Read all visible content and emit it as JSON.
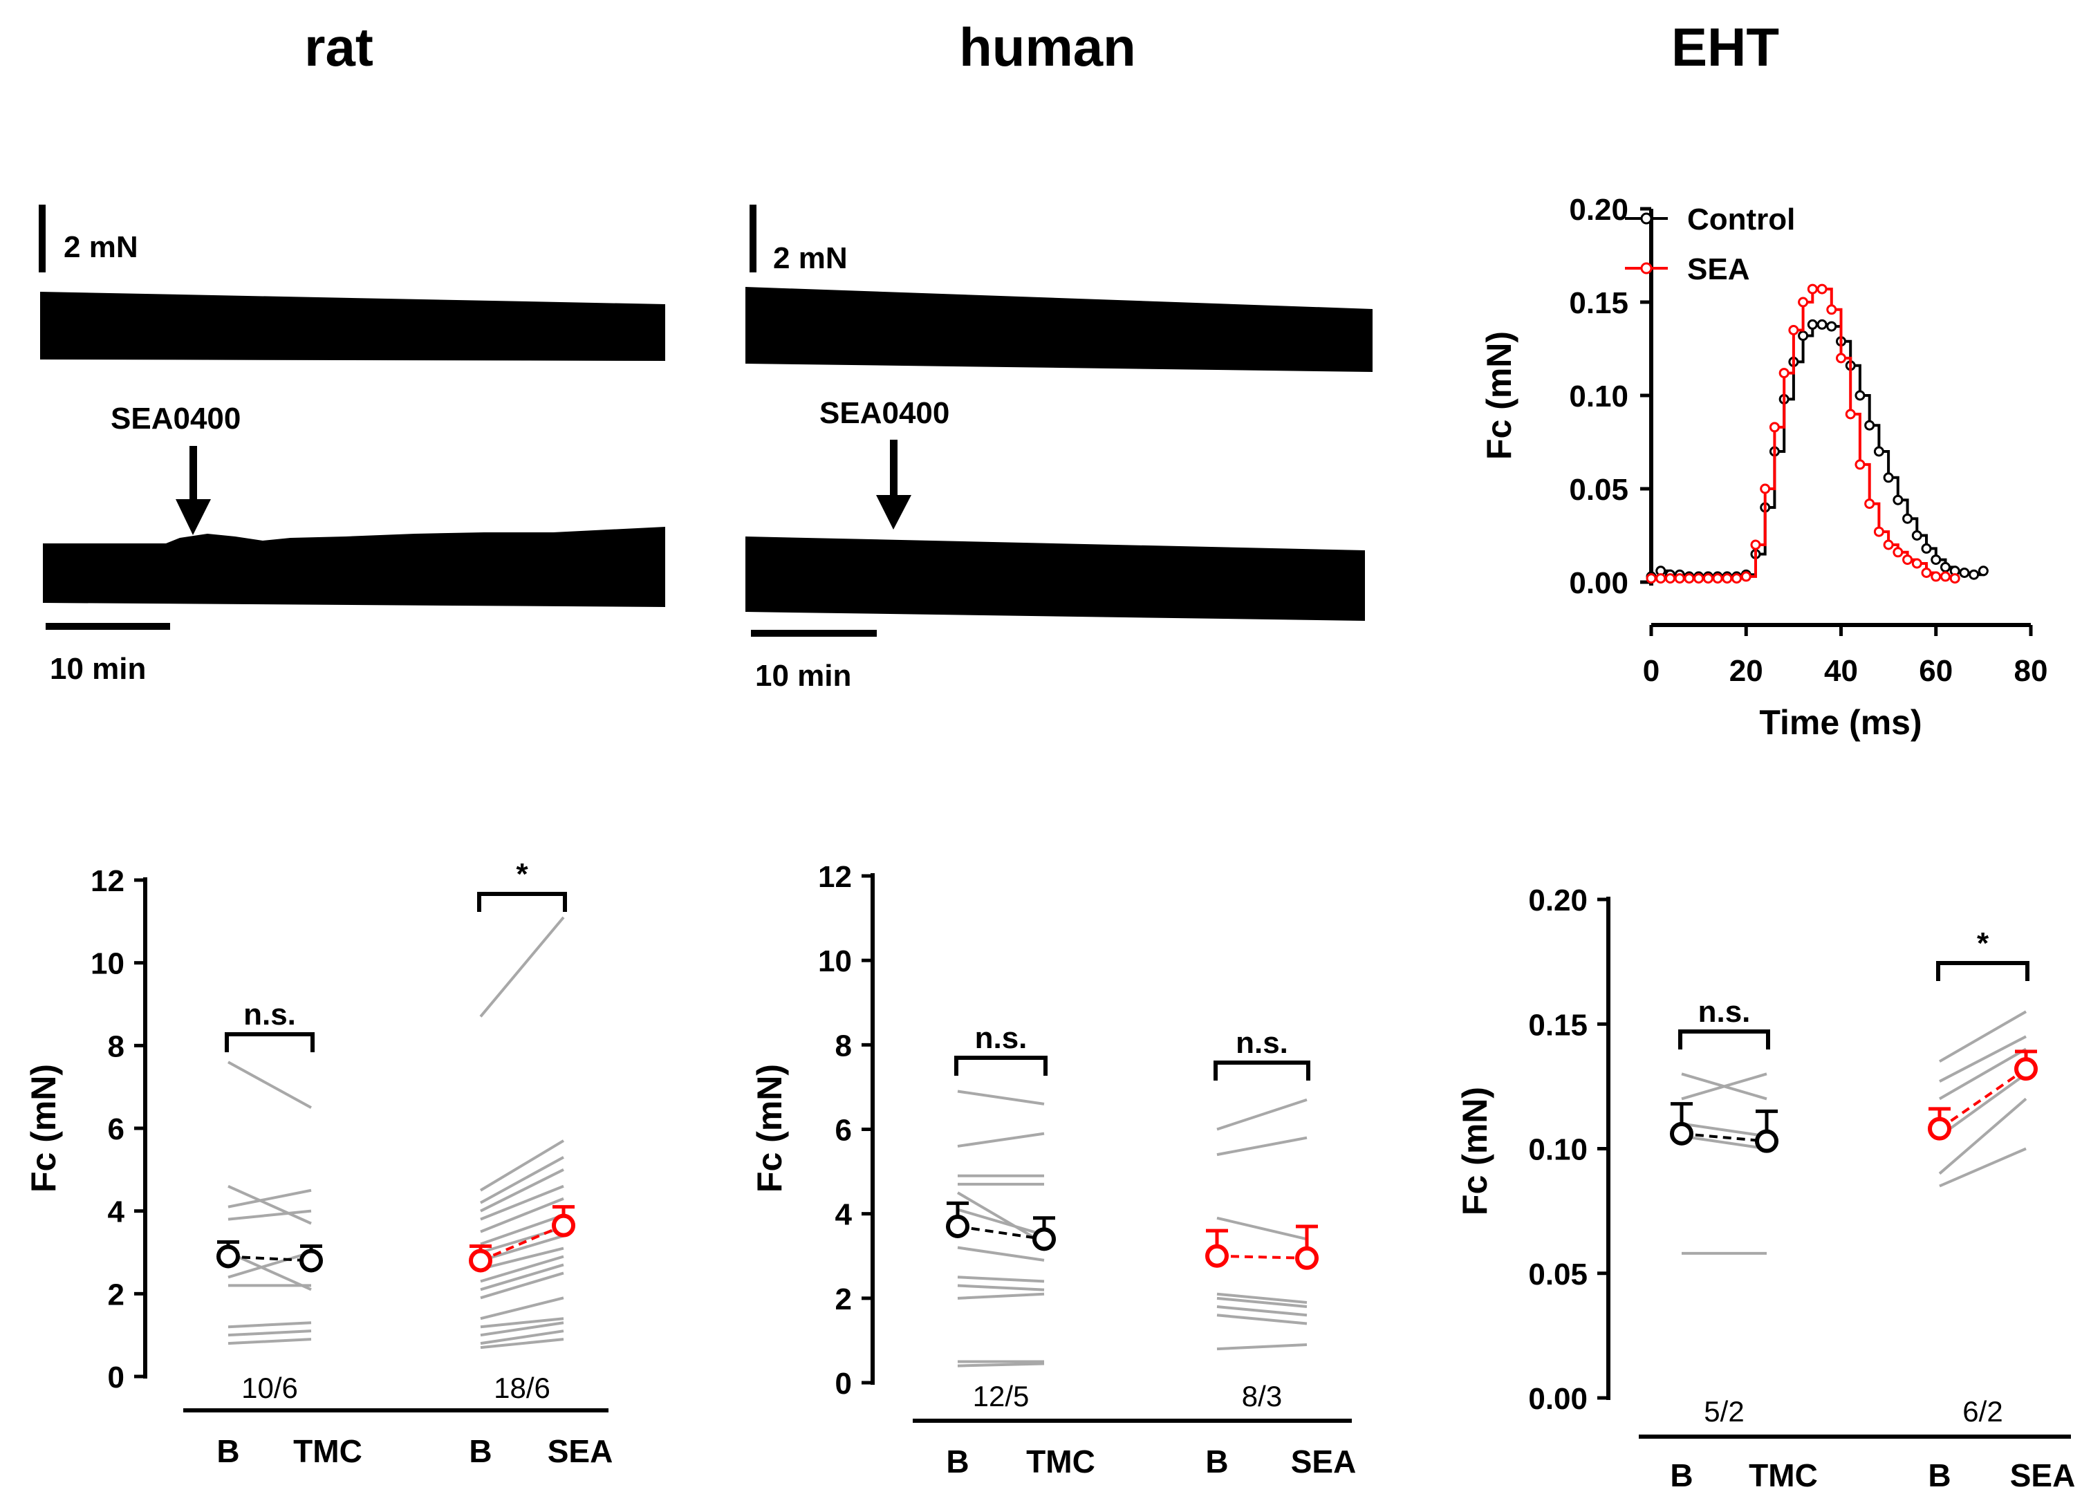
{
  "figure": {
    "titles": {
      "rat": "rat",
      "human": "human",
      "eht": "EHT"
    }
  },
  "traces": {
    "rat": {
      "scale_label": "2 mN",
      "time_label": "10 min",
      "drug_label": "SEA0400"
    },
    "human": {
      "scale_label": "2 mN",
      "time_label": "10 min",
      "drug_label": "SEA0400"
    }
  },
  "chart_data": [
    {
      "id": "eht_twitch",
      "type": "line",
      "title": "",
      "xlabel": "Time (ms)",
      "ylabel": "Fc (mN)",
      "xlim": [
        0,
        80
      ],
      "ylim": [
        0,
        0.2
      ],
      "xticks": [
        0,
        20,
        40,
        60,
        80
      ],
      "yticks": [
        0.0,
        0.05,
        0.1,
        0.15,
        0.2
      ],
      "ytick_labels": [
        "0.00",
        "0.05",
        "0.10",
        "0.15",
        "0.20"
      ],
      "legend": [
        "Control",
        "SEA"
      ],
      "series": [
        {
          "name": "Control",
          "color": "#000000",
          "points": [
            [
              0,
              0.003
            ],
            [
              2,
              0.006
            ],
            [
              4,
              0.004
            ],
            [
              6,
              0.004
            ],
            [
              8,
              0.003
            ],
            [
              10,
              0.003
            ],
            [
              12,
              0.003
            ],
            [
              14,
              0.003
            ],
            [
              16,
              0.003
            ],
            [
              18,
              0.003
            ],
            [
              20,
              0.004
            ],
            [
              22,
              0.015
            ],
            [
              24,
              0.04
            ],
            [
              26,
              0.07
            ],
            [
              28,
              0.098
            ],
            [
              30,
              0.118
            ],
            [
              32,
              0.132
            ],
            [
              34,
              0.138
            ],
            [
              36,
              0.138
            ],
            [
              38,
              0.137
            ],
            [
              40,
              0.129
            ],
            [
              42,
              0.116
            ],
            [
              44,
              0.1
            ],
            [
              46,
              0.084
            ],
            [
              48,
              0.07
            ],
            [
              50,
              0.056
            ],
            [
              52,
              0.044
            ],
            [
              54,
              0.034
            ],
            [
              56,
              0.025
            ],
            [
              58,
              0.018
            ],
            [
              60,
              0.012
            ],
            [
              62,
              0.008
            ],
            [
              64,
              0.006
            ],
            [
              66,
              0.005
            ],
            [
              68,
              0.004
            ],
            [
              70,
              0.006
            ]
          ]
        },
        {
          "name": "SEA",
          "color": "#ff0000",
          "points": [
            [
              0,
              0.002
            ],
            [
              2,
              0.002
            ],
            [
              4,
              0.002
            ],
            [
              6,
              0.002
            ],
            [
              8,
              0.002
            ],
            [
              10,
              0.002
            ],
            [
              12,
              0.002
            ],
            [
              14,
              0.002
            ],
            [
              16,
              0.002
            ],
            [
              18,
              0.002
            ],
            [
              20,
              0.003
            ],
            [
              22,
              0.02
            ],
            [
              24,
              0.05
            ],
            [
              26,
              0.083
            ],
            [
              28,
              0.112
            ],
            [
              30,
              0.135
            ],
            [
              32,
              0.15
            ],
            [
              34,
              0.157
            ],
            [
              36,
              0.157
            ],
            [
              38,
              0.146
            ],
            [
              40,
              0.12
            ],
            [
              42,
              0.09
            ],
            [
              44,
              0.063
            ],
            [
              46,
              0.042
            ],
            [
              48,
              0.027
            ],
            [
              50,
              0.02
            ],
            [
              52,
              0.016
            ],
            [
              54,
              0.012
            ],
            [
              56,
              0.01
            ],
            [
              58,
              0.005
            ],
            [
              60,
              0.003
            ],
            [
              62,
              0.003
            ],
            [
              64,
              0.002
            ]
          ]
        }
      ]
    },
    {
      "id": "rat_summary",
      "type": "line",
      "title": "rat",
      "ylabel": "Fc (mN)",
      "ylim": [
        0,
        12
      ],
      "yticks": [
        0,
        2,
        4,
        6,
        8,
        10,
        12
      ],
      "ytick_labels": [
        "0",
        "2",
        "4",
        "6",
        "8",
        "10",
        "12"
      ],
      "groups": [
        {
          "name": "TMC",
          "x_labels": [
            "B",
            "TMC"
          ],
          "n_label": "10/6",
          "significance": "n.s.",
          "mean_color": "#000000",
          "mean": [
            2.9,
            2.8
          ],
          "sem": [
            0.35,
            0.35
          ],
          "pairs": [
            [
              7.6,
              6.5
            ],
            [
              4.6,
              3.7
            ],
            [
              4.1,
              4.5
            ],
            [
              3.8,
              4.0
            ],
            [
              3.0,
              2.1
            ],
            [
              2.4,
              3.0
            ],
            [
              2.2,
              2.2
            ],
            [
              1.2,
              1.3
            ],
            [
              1.0,
              1.1
            ],
            [
              0.8,
              0.9
            ]
          ]
        },
        {
          "name": "SEA",
          "x_labels": [
            "B",
            "SEA"
          ],
          "n_label": "18/6",
          "significance": "*",
          "mean_color": "#ff0000",
          "mean": [
            2.8,
            3.65
          ],
          "sem": [
            0.35,
            0.45
          ],
          "pairs": [
            [
              8.7,
              11.1
            ],
            [
              4.5,
              5.7
            ],
            [
              4.2,
              5.3
            ],
            [
              4.0,
              5.0
            ],
            [
              3.8,
              4.6
            ],
            [
              3.5,
              4.3
            ],
            [
              3.2,
              3.9
            ],
            [
              3.0,
              3.6
            ],
            [
              2.8,
              3.4
            ],
            [
              2.6,
              3.1
            ],
            [
              2.3,
              2.9
            ],
            [
              2.1,
              2.7
            ],
            [
              1.9,
              2.5
            ],
            [
              1.4,
              1.9
            ],
            [
              1.2,
              1.4
            ],
            [
              1.0,
              1.3
            ],
            [
              0.8,
              1.1
            ],
            [
              0.7,
              0.9
            ]
          ]
        }
      ]
    },
    {
      "id": "human_summary",
      "type": "line",
      "title": "human",
      "ylabel": "Fc (mN)",
      "ylim": [
        0,
        12
      ],
      "yticks": [
        0,
        2,
        4,
        6,
        8,
        10,
        12
      ],
      "ytick_labels": [
        "0",
        "2",
        "4",
        "6",
        "8",
        "10",
        "12"
      ],
      "groups": [
        {
          "name": "TMC",
          "x_labels": [
            "B",
            "TMC"
          ],
          "n_label": "12/5",
          "significance": "n.s.",
          "mean_color": "#000000",
          "mean": [
            3.7,
            3.4
          ],
          "sem": [
            0.55,
            0.5
          ],
          "pairs": [
            [
              6.9,
              6.6
            ],
            [
              5.6,
              5.9
            ],
            [
              4.9,
              4.9
            ],
            [
              4.7,
              4.7
            ],
            [
              4.5,
              3.3
            ],
            [
              4.1,
              3.5
            ],
            [
              3.2,
              2.9
            ],
            [
              2.5,
              2.4
            ],
            [
              2.3,
              2.2
            ],
            [
              2.0,
              2.1
            ],
            [
              0.5,
              0.5
            ],
            [
              0.4,
              0.45
            ]
          ]
        },
        {
          "name": "SEA",
          "x_labels": [
            "B",
            "SEA"
          ],
          "n_label": "8/3",
          "significance": "n.s.",
          "mean_color": "#ff0000",
          "mean": [
            3.0,
            2.95
          ],
          "sem": [
            0.6,
            0.75
          ],
          "pairs": [
            [
              6.0,
              6.7
            ],
            [
              5.4,
              5.8
            ],
            [
              3.9,
              3.4
            ],
            [
              2.1,
              1.9
            ],
            [
              2.0,
              1.8
            ],
            [
              1.8,
              1.6
            ],
            [
              1.6,
              1.4
            ],
            [
              0.8,
              0.9
            ]
          ]
        }
      ]
    },
    {
      "id": "eht_summary",
      "type": "line",
      "title": "EHT",
      "ylabel": "Fc (mN)",
      "ylim": [
        0,
        0.2
      ],
      "yticks": [
        0.0,
        0.05,
        0.1,
        0.15,
        0.2
      ],
      "ytick_labels": [
        "0.00",
        "0.05",
        "0.10",
        "0.15",
        "0.20"
      ],
      "groups": [
        {
          "name": "TMC",
          "x_labels": [
            "B",
            "TMC"
          ],
          "n_label": "5/2",
          "significance": "n.s.",
          "mean_color": "#000000",
          "mean": [
            0.106,
            0.103
          ],
          "sem": [
            0.012,
            0.012
          ],
          "pairs": [
            [
              0.13,
              0.12
            ],
            [
              0.12,
              0.13
            ],
            [
              0.11,
              0.105
            ],
            [
              0.105,
              0.1
            ],
            [
              0.058,
              0.058
            ]
          ]
        },
        {
          "name": "SEA",
          "x_labels": [
            "B",
            "SEA"
          ],
          "n_label": "6/2",
          "significance": "*",
          "mean_color": "#ff0000",
          "mean": [
            0.108,
            0.132
          ],
          "sem": [
            0.008,
            0.007
          ],
          "pairs": [
            [
              0.135,
              0.155
            ],
            [
              0.127,
              0.145
            ],
            [
              0.12,
              0.14
            ],
            [
              0.105,
              0.13
            ],
            [
              0.09,
              0.12
            ],
            [
              0.085,
              0.1
            ]
          ]
        }
      ]
    }
  ]
}
